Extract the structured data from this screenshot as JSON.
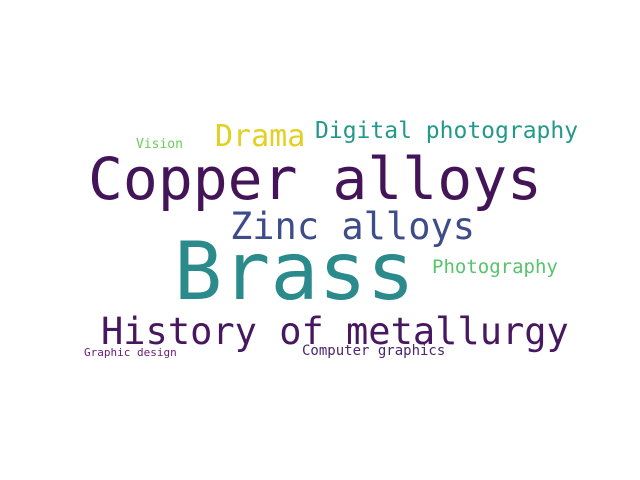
{
  "cloud": {
    "words": [
      {
        "text": "Brass",
        "color": "#2b8a8b"
      },
      {
        "text": "Copper alloys",
        "color": "#431458"
      },
      {
        "text": "History of metallurgy",
        "color": "#47185f"
      },
      {
        "text": "Zinc alloys",
        "color": "#3e4c89"
      },
      {
        "text": "Drama",
        "color": "#e2d123"
      },
      {
        "text": "Digital photography",
        "color": "#23998a"
      },
      {
        "text": "Photography",
        "color": "#57c46c"
      },
      {
        "text": "Vision",
        "color": "#6ccd59"
      },
      {
        "text": "Computer graphics",
        "color": "#4b256f"
      },
      {
        "text": "Graphic design",
        "color": "#6a1a6f"
      }
    ]
  }
}
